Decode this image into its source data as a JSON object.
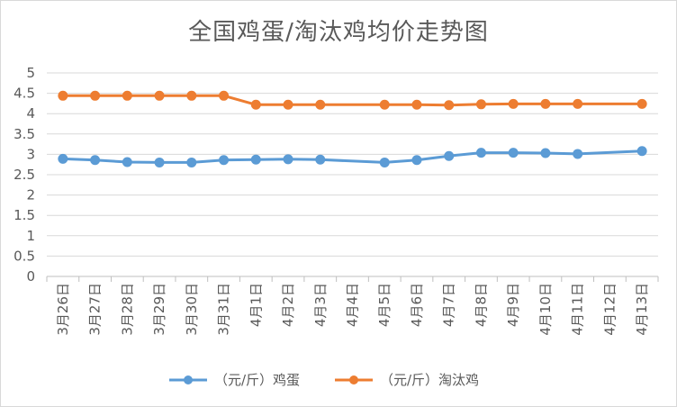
{
  "chart_data": {
    "type": "line",
    "title": "全国鸡蛋/淘汰鸡均价走势图",
    "categories": [
      "3月26日",
      "3月27日",
      "3月28日",
      "3月29日",
      "3月30日",
      "3月31日",
      "4月1日",
      "4月2日",
      "4月3日",
      "4月4日",
      "4月5日",
      "4月6日",
      "4月7日",
      "4月8日",
      "4月9日",
      "4月10日",
      "4月11日",
      "4月12日",
      "4月13日"
    ],
    "ylim": [
      0,
      5
    ],
    "yticks": [
      "0",
      "0.5",
      "1",
      "1.5",
      "2",
      "2.5",
      "3",
      "3.5",
      "4",
      "4.5",
      "5"
    ],
    "grid": true,
    "legend_position": "bottom",
    "series": [
      {
        "name": "（元/斤）鸡蛋",
        "color": "#5b9bd5",
        "values": [
          2.89,
          2.86,
          2.81,
          2.8,
          2.8,
          2.86,
          2.87,
          2.88,
          2.87,
          null,
          2.8,
          2.86,
          2.96,
          3.04,
          3.04,
          3.03,
          3.01,
          null,
          3.08
        ]
      },
      {
        "name": "（元/斤）淘汰鸡",
        "color": "#ed7d31",
        "values": [
          4.44,
          4.44,
          4.44,
          4.44,
          4.44,
          4.44,
          4.22,
          4.22,
          4.22,
          null,
          4.22,
          4.22,
          4.21,
          4.23,
          4.24,
          4.24,
          4.24,
          null,
          4.24
        ]
      }
    ]
  }
}
